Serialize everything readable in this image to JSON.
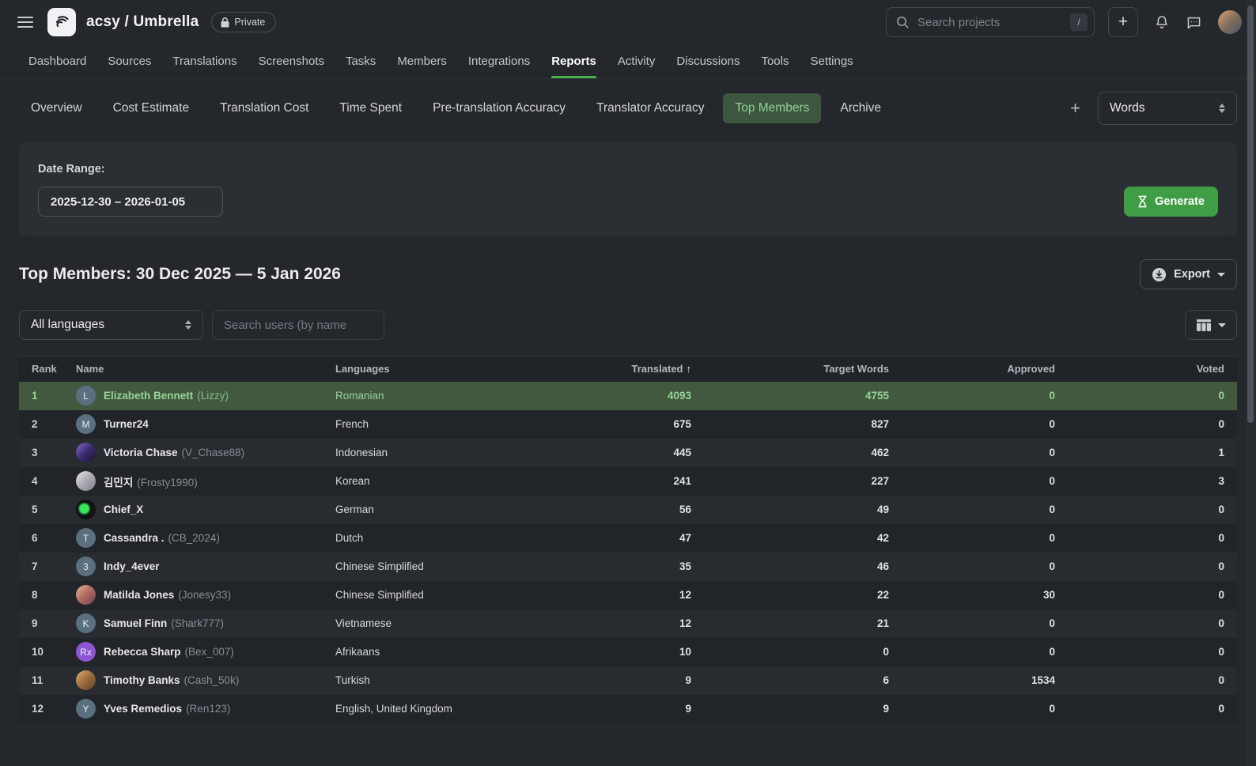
{
  "topbar": {
    "project_title": "acsy / Umbrella",
    "privacy_badge": "Private",
    "search_placeholder": "Search projects",
    "search_shortcut": "/",
    "plus_label": "+"
  },
  "nav": {
    "items": [
      "Dashboard",
      "Sources",
      "Translations",
      "Screenshots",
      "Tasks",
      "Members",
      "Integrations",
      "Reports",
      "Activity",
      "Discussions",
      "Tools",
      "Settings"
    ],
    "active": "Reports"
  },
  "subnav": {
    "items": [
      "Overview",
      "Cost Estimate",
      "Translation Cost",
      "Time Spent",
      "Pre-translation Accuracy",
      "Translator Accuracy",
      "Top Members",
      "Archive"
    ],
    "active": "Top Members",
    "add_label": "+",
    "unit_select_value": "Words"
  },
  "report_form": {
    "date_range_label": "Date Range:",
    "date_range_value": "2025-12-30 – 2026-01-05",
    "generate_label": "Generate"
  },
  "report": {
    "title": "Top Members: 30 Dec 2025 — 5 Jan 2026",
    "export_label": "Export",
    "language_filter_value": "All languages",
    "user_search_placeholder": "Search users (by name",
    "table": {
      "columns": [
        "Rank",
        "Name",
        "Languages",
        "Translated",
        "Target Words",
        "Approved",
        "Voted"
      ],
      "sort": {
        "column": "Translated",
        "icon": "↑"
      },
      "rows": [
        {
          "rank": "1",
          "name": "Elizabeth Bennett",
          "username": "(Lizzy)",
          "languages": "Romanian",
          "translated": "4093",
          "target_words": "4755",
          "approved": "0",
          "voted": "0",
          "highlighted": true,
          "avatar": {
            "kind": "initial",
            "label": "L",
            "bg": "#5a7080"
          }
        },
        {
          "rank": "2",
          "name": "Turner24",
          "username": "",
          "languages": "French",
          "translated": "675",
          "target_words": "827",
          "approved": "0",
          "voted": "0",
          "avatar": {
            "kind": "initial",
            "label": "M",
            "bg": "#5a7080"
          }
        },
        {
          "rank": "3",
          "name": "Victoria Chase",
          "username": "(V_Chase88)",
          "languages": "Indonesian",
          "translated": "445",
          "target_words": "462",
          "approved": "0",
          "voted": "1",
          "avatar": {
            "kind": "gradient",
            "colors": [
              "#8a6ccf",
              "#3b2a6e",
              "#1a1430"
            ]
          }
        },
        {
          "rank": "4",
          "name": "김민지",
          "username": "(Frosty1990)",
          "languages": "Korean",
          "translated": "241",
          "target_words": "227",
          "approved": "0",
          "voted": "3",
          "avatar": {
            "kind": "gradient",
            "colors": [
              "#e9e9eb",
              "#aaabb2",
              "#7e8089"
            ]
          }
        },
        {
          "rank": "5",
          "name": "Chief_X",
          "username": "",
          "languages": "German",
          "translated": "56",
          "target_words": "49",
          "approved": "0",
          "voted": "0",
          "avatar": {
            "kind": "dot",
            "colors": [
              "#37e659",
              "#101214"
            ]
          }
        },
        {
          "rank": "6",
          "name": "Cassandra .",
          "username": "(CB_2024)",
          "languages": "Dutch",
          "translated": "47",
          "target_words": "42",
          "approved": "0",
          "voted": "0",
          "avatar": {
            "kind": "initial",
            "label": "T",
            "bg": "#5a7080"
          }
        },
        {
          "rank": "7",
          "name": "Indy_4ever",
          "username": "",
          "languages": "Chinese Simplified",
          "translated": "35",
          "target_words": "46",
          "approved": "0",
          "voted": "0",
          "avatar": {
            "kind": "initial",
            "label": "3",
            "bg": "#5a7080"
          }
        },
        {
          "rank": "8",
          "name": "Matilda Jones",
          "username": "(Jonesy33)",
          "languages": "Chinese Simplified",
          "translated": "12",
          "target_words": "22",
          "approved": "30",
          "voted": "0",
          "avatar": {
            "kind": "gradient",
            "colors": [
              "#e8b29b",
              "#b06a5e",
              "#6e3f48"
            ]
          }
        },
        {
          "rank": "9",
          "name": "Samuel Finn",
          "username": "(Shark777)",
          "languages": "Vietnamese",
          "translated": "12",
          "target_words": "21",
          "approved": "0",
          "voted": "0",
          "avatar": {
            "kind": "initial",
            "label": "K",
            "bg": "#5a7080"
          }
        },
        {
          "rank": "10",
          "name": "Rebecca Sharp",
          "username": "(Bex_007)",
          "languages": "Afrikaans",
          "translated": "10",
          "target_words": "0",
          "approved": "0",
          "voted": "0",
          "avatar": {
            "kind": "initial",
            "label": "Rx",
            "bg": "#8d55d4"
          }
        },
        {
          "rank": "11",
          "name": "Timothy Banks",
          "username": "(Cash_50k)",
          "languages": "Turkish",
          "translated": "9",
          "target_words": "6",
          "approved": "1534",
          "voted": "0",
          "avatar": {
            "kind": "gradient",
            "colors": [
              "#e3b06e",
              "#9a6b3f",
              "#5d4027"
            ]
          }
        },
        {
          "rank": "12",
          "name": "Yves Remedios",
          "username": "(Ren123)",
          "languages": "English, United Kingdom",
          "translated": "9",
          "target_words": "9",
          "approved": "0",
          "voted": "0",
          "avatar": {
            "kind": "initial",
            "label": "Y",
            "bg": "#5a7080"
          }
        }
      ]
    }
  },
  "colors": {
    "accent_green": "#43a047",
    "active_tab_underline": "#4caf50",
    "active_pill_bg": "#3d5640",
    "active_pill_text": "#8fd193",
    "highlight_row_bg": "#42593f",
    "highlight_row_text": "#97d49a",
    "panel_bg": "#2b2f34",
    "page_bg": "#24272b"
  }
}
